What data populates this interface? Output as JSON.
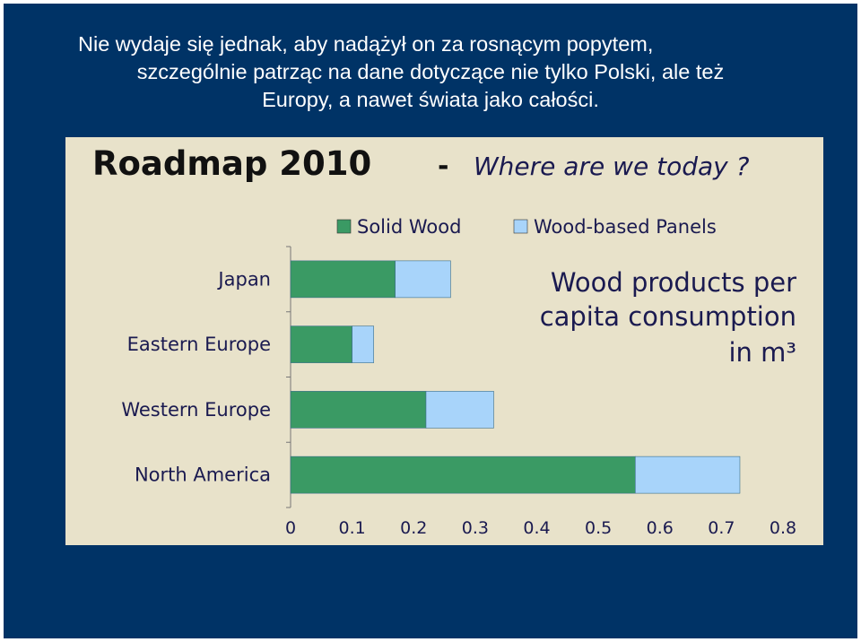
{
  "slide": {
    "line1": "Nie wydaje się jednak, aby nadążył on za rosnącym popytem,",
    "line2": "szczególnie patrząc na dane dotyczące nie tylko Polski, ale też",
    "line3": "Europy, a nawet świata jako całości."
  },
  "chart_data": {
    "type": "bar",
    "orientation": "horizontal",
    "stacked": true,
    "title": "Roadmap 2010",
    "title_separator": "-",
    "subtitle": "Where are we today ?",
    "annotation": [
      "Wood products per",
      "capita consumption",
      "in m³"
    ],
    "categories": [
      "Japan",
      "Eastern Europe",
      "Western Europe",
      "North America"
    ],
    "series": [
      {
        "name": "Solid Wood",
        "color": "#3a9a64",
        "values": [
          0.17,
          0.1,
          0.22,
          0.56
        ]
      },
      {
        "name": "Wood-based Panels",
        "color": "#a8d4fa",
        "values": [
          0.09,
          0.035,
          0.11,
          0.17
        ]
      }
    ],
    "xlim": [
      0,
      0.8
    ],
    "xticks": [
      "0",
      "0.1",
      "0.2",
      "0.3",
      "0.4",
      "0.5",
      "0.6",
      "0.7",
      "0.8"
    ],
    "legend_position": "top",
    "grid": false
  }
}
